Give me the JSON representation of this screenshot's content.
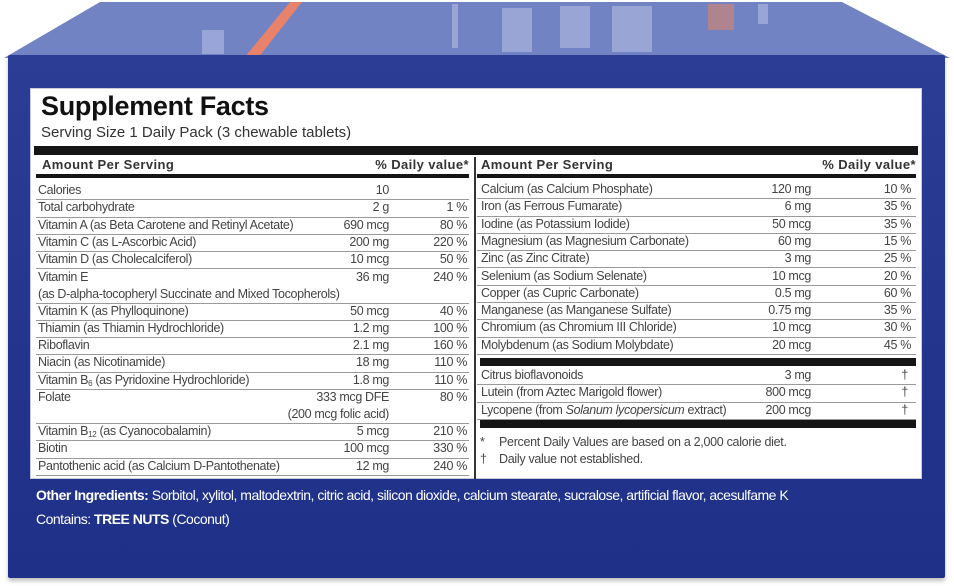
{
  "colors": {
    "box_blue": "#22348c",
    "box_top": "#7283c3",
    "stripe": "#e9826a",
    "label_bg": "#ffffff"
  },
  "label": {
    "title": "Supplement Facts",
    "serving": "Serving Size 1 Daily Pack (3 chewable tablets)",
    "header_amount": "Amount Per Serving",
    "header_dv": "% Daily value*",
    "left_rows": [
      {
        "name": "Calories",
        "amount": "10",
        "dv": ""
      },
      {
        "name": "Total carbohydrate",
        "amount": "2 g",
        "dv": "1 %"
      },
      {
        "name": "Vitamin A (as Beta Carotene and Retinyl Acetate)",
        "amount": "690 mcg",
        "dv": "80 %"
      },
      {
        "name": "Vitamin C (as L-Ascorbic Acid)",
        "amount": "200 mg",
        "dv": "220 %"
      },
      {
        "name": "Vitamin D (as Cholecalciferol)",
        "amount": "10 mcg",
        "dv": "50 %"
      },
      {
        "name": "Vitamin E",
        "amount": "36 mg",
        "dv": "240 %",
        "line2": "(as D-alpha-tocopheryl Succinate and Mixed Tocopherols)"
      },
      {
        "name": "Vitamin K (as Phylloquinone)",
        "amount": "50 mcg",
        "dv": "40 %"
      },
      {
        "name": "Thiamin (as Thiamin Hydrochloride)",
        "amount": "1.2 mg",
        "dv": "100 %"
      },
      {
        "name": "Riboflavin",
        "amount": "2.1 mg",
        "dv": "160 %"
      },
      {
        "name": "Niacin (as Nicotinamide)",
        "amount": "18 mg",
        "dv": "110 %"
      },
      {
        "name": "Vitamin B",
        "sub": "6",
        "post": " (as Pyridoxine Hydrochloride)",
        "amount": "1.8 mg",
        "dv": "110 %"
      },
      {
        "name": "Folate",
        "amount": "333 mcg DFE",
        "dv": "80 %",
        "amount2": "(200 mcg folic acid)"
      },
      {
        "name": "Vitamin B",
        "sub": "12",
        "post": " (as Cyanocobalamin)",
        "amount": "5 mcg",
        "dv": "210 %"
      },
      {
        "name": "Biotin",
        "amount": "100 mcg",
        "dv": "330 %"
      },
      {
        "name": "Pantothenic acid (as Calcium D-Pantothenate)",
        "amount": "12 mg",
        "dv": "240 %"
      }
    ],
    "right_rows": [
      {
        "name": "Calcium (as Calcium Phosphate)",
        "amount": "120 mg",
        "dv": "10 %"
      },
      {
        "name": "Iron (as Ferrous Fumarate)",
        "amount": "6 mg",
        "dv": "35 %"
      },
      {
        "name": "Iodine (as Potassium Iodide)",
        "amount": "50 mcg",
        "dv": "35 %"
      },
      {
        "name": "Magnesium (as Magnesium Carbonate)",
        "amount": "60 mg",
        "dv": "15 %"
      },
      {
        "name": "Zinc (as Zinc Citrate)",
        "amount": "3 mg",
        "dv": "25 %"
      },
      {
        "name": "Selenium (as Sodium Selenate)",
        "amount": "10 mcg",
        "dv": "20 %"
      },
      {
        "name": "Copper (as Cupric Carbonate)",
        "amount": "0.5 mg",
        "dv": "60 %"
      },
      {
        "name": "Manganese (as Manganese Sulfate)",
        "amount": "0.75 mg",
        "dv": "35 %"
      },
      {
        "name": "Chromium (as Chromium III Chloride)",
        "amount": "10 mcg",
        "dv": "30 %"
      },
      {
        "name": "Molybdenum (as Sodium Molybdate)",
        "amount": "20 mcg",
        "dv": "45 %"
      }
    ],
    "other_rows": [
      {
        "name": "Citrus bioflavonoids",
        "amount": "3 mg",
        "dv": "†"
      },
      {
        "name": "Lutein (from Aztec Marigold flower)",
        "amount": "800 mcg",
        "dv": "†"
      },
      {
        "name": "Lycopene (from ",
        "italic": "Solanum lycopersicum",
        "post": " extract)",
        "amount": "200 mcg",
        "dv": "†"
      }
    ],
    "footnotes": [
      {
        "mark": "*",
        "text": "Percent Daily Values are based on a 2,000 calorie diet."
      },
      {
        "mark": "†",
        "text": "Daily value not established."
      }
    ]
  },
  "ingredients": {
    "other_label": "Other Ingredients:",
    "other_text": " Sorbitol, xylitol, maltodextrin, citric acid, silicon dioxide, calcium stearate, sucralose, artificial flavor, acesulfame K",
    "contains_label": "Contains: ",
    "contains_bold": "TREE NUTS",
    "contains_post": " (Coconut)"
  }
}
